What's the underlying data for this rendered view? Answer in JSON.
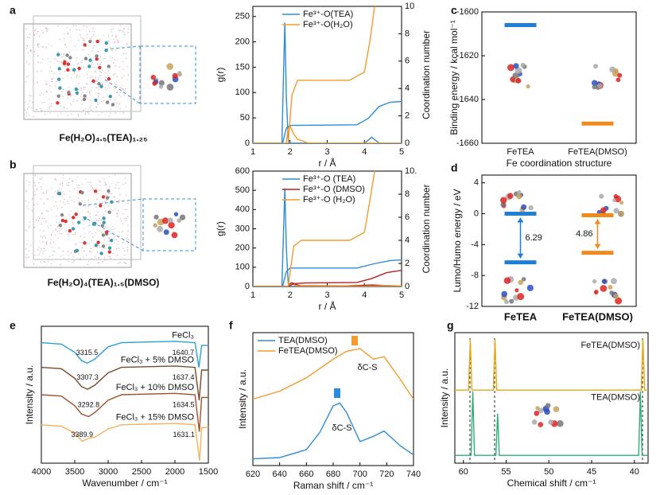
{
  "panel_labels": [
    "a",
    "b",
    "c",
    "d",
    "e",
    "f",
    "g"
  ],
  "captions": [
    "Fe(H₂O)₄.₅(TEA)₁.₂₅",
    "Fe(H₂O)₄(TEA)₁.₅(DMSO)"
  ],
  "chart_data": [
    {
      "type": "line",
      "xlabel": "r / Å",
      "ylabel": "g(r)",
      "y2label": "Coordination number",
      "xlim": [
        1,
        5
      ],
      "xticks": [
        1,
        2,
        3,
        4,
        5
      ],
      "ylim": [
        0,
        270
      ],
      "yticks": [
        0,
        50,
        100,
        150,
        200,
        250
      ],
      "y2lim": [
        0,
        10
      ],
      "y2ticks": [
        0,
        2,
        4,
        6,
        8,
        10
      ],
      "legend": "upper right",
      "series": [
        {
          "name": "Fe³⁺-O(TEA)",
          "color": "#2e8bd6",
          "x": [
            1,
            1.78,
            1.82,
            1.86,
            1.9,
            1.95,
            2.0,
            4.0,
            4.2,
            4.4,
            5
          ],
          "values": [
            0,
            0,
            120,
            238,
            90,
            10,
            0,
            0,
            12,
            0,
            0
          ]
        },
        {
          "name": "Fe³⁺-O(H₂O)",
          "color": "#f39b2e",
          "x": [
            1,
            1.9,
            1.95,
            2.0,
            2.1,
            2.2,
            2.5,
            5
          ],
          "values": [
            0,
            0,
            30,
            34,
            18,
            8,
            0,
            0
          ]
        },
        {
          "color": "#2e8bd6",
          "axis": "y2",
          "x": [
            1,
            1.8,
            1.9,
            2.0,
            3.8,
            4.1,
            4.4,
            4.7,
            5
          ],
          "values": [
            0,
            0,
            1.1,
            1.3,
            1.35,
            1.8,
            2.7,
            3.0,
            3.05
          ]
        },
        {
          "color": "#f39b2e",
          "axis": "y2",
          "x": [
            1,
            1.95,
            2.05,
            2.2,
            3.6,
            4.0,
            4.15,
            4.3
          ],
          "values": [
            0,
            0,
            3.5,
            4.6,
            4.6,
            5.2,
            7.5,
            10.5
          ]
        }
      ]
    },
    {
      "type": "line",
      "xlabel": "r / Å",
      "ylabel": "g(r)",
      "y2label": "Coordination number",
      "xlim": [
        1,
        5
      ],
      "xticks": [
        1,
        2,
        3,
        4,
        5
      ],
      "ylim": [
        0,
        600
      ],
      "yticks": [
        0,
        100,
        200,
        300,
        400,
        500,
        600
      ],
      "y2lim": [
        0,
        10
      ],
      "y2ticks": [
        0,
        2,
        4,
        6,
        8,
        {
          "value": 10,
          "label": "10."
        }
      ],
      "legend": "upper right",
      "series": [
        {
          "name": "Fe³⁺-O (TEA)",
          "color": "#2e8bd6",
          "x": [
            1,
            1.78,
            1.82,
            1.86,
            1.9,
            1.95,
            2.0,
            5
          ],
          "values": [
            0,
            0,
            250,
            510,
            200,
            20,
            0,
            0
          ]
        },
        {
          "name": "Fe³⁺-O (DMSO)",
          "color": "#b22222",
          "x": [
            1,
            1.95,
            2.0,
            2.05,
            2.15,
            2.3,
            3.5,
            4.2,
            4.6,
            5
          ],
          "values": [
            0,
            0,
            15,
            20,
            10,
            4,
            3,
            8,
            5,
            3
          ]
        },
        {
          "name": "Fe³⁺-O (H₂O)",
          "color": "#f39b2e",
          "x": [
            1,
            1.95,
            2.0,
            2.05,
            2.2,
            4.2,
            4.5,
            5
          ],
          "values": [
            0,
            0,
            10,
            12,
            3,
            1,
            5,
            3
          ]
        },
        {
          "color": "#2e8bd6",
          "axis": "y2",
          "x": [
            1,
            1.8,
            1.9,
            2.0,
            3.8,
            4.3,
            4.7,
            5
          ],
          "values": [
            0,
            0,
            1.3,
            1.6,
            1.6,
            2.0,
            2.25,
            2.3
          ]
        },
        {
          "color": "#b22222",
          "axis": "y2",
          "x": [
            1,
            1.95,
            2.1,
            2.4,
            3.8,
            4.2,
            4.6,
            5
          ],
          "values": [
            0,
            0,
            0.25,
            0.3,
            0.35,
            0.7,
            1.2,
            1.4
          ]
        },
        {
          "color": "#f39b2e",
          "axis": "y2",
          "x": [
            1,
            1.95,
            2.1,
            2.3,
            3.6,
            4.0,
            4.15,
            4.3
          ],
          "values": [
            0,
            0,
            3.5,
            4.0,
            4.0,
            4.7,
            7.5,
            10.5
          ]
        }
      ]
    },
    {
      "type": "scatter",
      "ylabel": "Binding energy / kcal mol⁻¹",
      "xlabel": "Fe coordination structure",
      "categories": [
        "FeTEA",
        "FeTEA(DMSO)"
      ],
      "values": [
        -1606,
        -1651
      ],
      "colors": [
        "#1f7fd6",
        "#f08a1c"
      ],
      "ylim": [
        -1660,
        -1600
      ],
      "yticks": [
        -1660,
        -1640,
        -1620,
        -1600
      ]
    },
    {
      "type": "level",
      "ylabel": "Lumo/Humo energy  / eV",
      "categories": [
        "FeTEA",
        "FeTEA(DMSO)"
      ],
      "colors": [
        "#1f7fd6",
        "#f08a1c"
      ],
      "series": [
        {
          "values": [
            0,
            -0.2
          ]
        },
        {
          "values": [
            -6.29,
            -5.06
          ]
        }
      ],
      "gaps": [
        6.29,
        4.86
      ],
      "ylim": [
        -12,
        5
      ],
      "yticks": [
        -12,
        -8,
        -4,
        0,
        4
      ]
    },
    {
      "type": "line",
      "xlabel": "Wavenumber / cm⁻¹",
      "ylabel": "Intensity / a.u.",
      "xlim": [
        4000,
        1500
      ],
      "xticks": [
        4000,
        3500,
        3000,
        2500,
        2000,
        1500
      ],
      "ylim": [
        0,
        10
      ],
      "legend": "curve",
      "series": [
        {
          "name": "FeCl₃",
          "color": "#2a9fd8",
          "x": [
            4000,
            3700,
            3500,
            3400,
            3315,
            3200,
            3000,
            2800,
            2000,
            1700,
            1640,
            1600,
            1500
          ],
          "values": [
            8.8,
            8.7,
            8.1,
            7.5,
            7.3,
            7.6,
            8.5,
            8.8,
            8.9,
            8.8,
            7.0,
            8.6,
            8.6
          ],
          "peak_labels": [
            3315.5,
            1640.7
          ]
        },
        {
          "name": "FeCl₃ + 5% DMSO",
          "color": "#7a4a2a",
          "x": [
            4000,
            3700,
            3500,
            3400,
            3307,
            3200,
            3000,
            2800,
            2000,
            1700,
            1637,
            1600,
            1500
          ],
          "values": [
            7.0,
            6.9,
            6.2,
            5.6,
            5.4,
            5.7,
            6.6,
            7.0,
            7.1,
            7.0,
            4.6,
            6.8,
            6.8
          ],
          "peak_labels": [
            3307.3,
            1637.4
          ]
        },
        {
          "name": "FeCl₃ + 10% DMSO",
          "color": "#a0522d",
          "x": [
            4000,
            3700,
            3500,
            3400,
            3293,
            3200,
            3000,
            2800,
            2000,
            1700,
            1634,
            1600,
            1500
          ],
          "values": [
            5.0,
            4.9,
            4.2,
            3.6,
            3.4,
            3.7,
            4.6,
            5.0,
            5.1,
            5.0,
            2.3,
            4.8,
            4.8
          ],
          "peak_labels": [
            3292.8,
            1634.5
          ]
        },
        {
          "name": "FeCl₃ + 15% DMSO",
          "color": "#f3b35a",
          "x": [
            4000,
            3700,
            3500,
            3389,
            3300,
            3200,
            3000,
            2800,
            2000,
            1700,
            1631,
            1600,
            1500
          ],
          "values": [
            2.8,
            2.7,
            2.2,
            1.6,
            1.8,
            1.9,
            2.5,
            2.8,
            2.9,
            2.8,
            0.2,
            2.6,
            2.6
          ],
          "peak_labels": [
            3389.9,
            1631.1
          ]
        }
      ]
    },
    {
      "type": "line",
      "xlabel": "Raman  shift / cm⁻¹",
      "ylabel": "Intensity / a.u.",
      "annotations": [
        "δC-S",
        "δC-S"
      ],
      "xlim": [
        620,
        740
      ],
      "xticks": [
        620,
        640,
        660,
        680,
        700,
        720,
        740
      ],
      "ylim": [
        0,
        10
      ],
      "legend": "upper left",
      "series": [
        {
          "name": "TEA(DMSO)",
          "color": "#2e8bd6",
          "x": [
            620,
            640,
            660,
            670,
            680,
            685,
            690,
            700,
            710,
            718,
            730,
            740
          ],
          "values": [
            0.5,
            0.6,
            1.2,
            2.5,
            4.5,
            4.7,
            4.0,
            1.8,
            2.2,
            2.6,
            1.5,
            0.8
          ]
        },
        {
          "name": "FeTEA(DMSO)",
          "color": "#f39b2e",
          "x": [
            620,
            640,
            660,
            670,
            680,
            685,
            690,
            700,
            710,
            718,
            730,
            740
          ],
          "values": [
            5.0,
            5.6,
            6.6,
            7.3,
            8.0,
            8.3,
            8.6,
            8.8,
            8.0,
            8.2,
            6.5,
            5.0
          ]
        }
      ]
    },
    {
      "type": "line",
      "xlabel": "Chemical  shift / cm⁻¹",
      "ylabel": "Intensity / a.u.",
      "xlim": [
        61,
        38.4
      ],
      "xticks": [
        60,
        55,
        50,
        45,
        40
      ],
      "ylim": [
        0,
        10
      ],
      "legend": "peak",
      "series": [
        {
          "name": "FeTEA(DMSO)",
          "color": "#e6a817",
          "x": [
            61,
            59.4,
            59.2,
            59.0,
            56.5,
            56.3,
            56.1,
            39.2,
            39.0,
            38.8,
            38.4
          ],
          "values": [
            5.6,
            5.6,
            9.5,
            5.6,
            5.6,
            9.5,
            5.6,
            5.6,
            9.5,
            5.6,
            5.6
          ]
        },
        {
          "name": "TEA(DMSO)",
          "color": "#2fae7a",
          "x": [
            61,
            59.1,
            58.9,
            58.7,
            56.2,
            56.0,
            55.8,
            39.5,
            39.3,
            39.1,
            38.4
          ],
          "values": [
            0.6,
            0.6,
            5.5,
            0.6,
            0.6,
            3.8,
            0.6,
            0.6,
            5.5,
            0.6,
            0.6
          ]
        }
      ]
    }
  ]
}
